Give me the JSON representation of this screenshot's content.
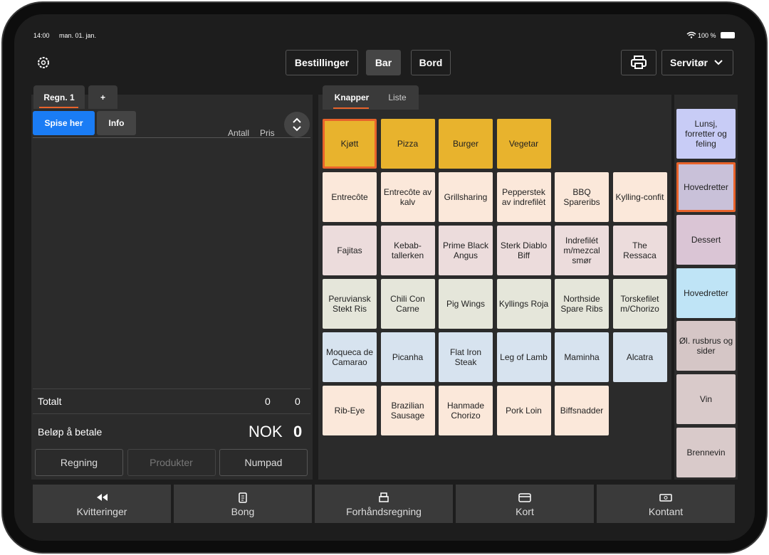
{
  "status": {
    "time": "14:00",
    "date": "man. 01. jan.",
    "battery": "100 %"
  },
  "nav": {
    "tabs": [
      "Bestillinger",
      "Bar",
      "Bord"
    ],
    "active_tab": 1,
    "user": "Servitør"
  },
  "bill": {
    "tabs": [
      "Regn. 1",
      "+"
    ],
    "modes": [
      "Spise her",
      "Info"
    ],
    "columns": [
      "Antall",
      "Pris"
    ],
    "total_label": "Totalt",
    "total_count": 0,
    "total_price": 0,
    "pay_label": "Beløp å betale",
    "currency": "NOK",
    "pay_amount": 0,
    "buttons": [
      "Regning",
      "Produkter",
      "Numpad"
    ],
    "disabled_button": 1
  },
  "products": {
    "tabs": [
      "Knapper",
      "Liste"
    ],
    "selected_cell": [
      0,
      0
    ],
    "rows": [
      {
        "color": "#e8b32d",
        "items": [
          "Kjøtt",
          "Pizza",
          "Burger",
          "Vegetar"
        ]
      },
      {
        "color": "#fbe8da",
        "items": [
          "Entrecôte",
          "Entrecôte av kalv",
          "Grillsharing",
          "Pepperstek av indrefilèt",
          "BBQ Spareribs",
          "Kylling-confit"
        ]
      },
      {
        "color": "#ecdcdc",
        "items": [
          "Fajitas",
          "Kebab-tallerken",
          "Prime Black Angus",
          "Sterk Diablo Biff",
          "Indrefilét m/mezcal smør",
          "The Ressaca"
        ]
      },
      {
        "color": "#e5e6da",
        "items": [
          "Peruviansk Stekt Ris",
          "Chili Con Carne",
          "Pig Wings",
          "Kyllings Roja",
          "Northside Spare Ribs",
          "Torskefilet m/Chorizo"
        ]
      },
      {
        "color": "#d7e3ef",
        "items": [
          "Moqueca de Camarao",
          "Picanha",
          "Flat Iron Steak",
          "Leg of Lamb",
          "Maminha",
          "Alcatra"
        ]
      },
      {
        "color": "#fbe8da",
        "items": [
          "Rib-Eye",
          "Brazilian Sausage",
          "Hanmade Chorizo",
          "Pork Loin",
          "Biffsnadder"
        ]
      }
    ]
  },
  "categories": {
    "selected": 1,
    "items": [
      {
        "label": "Lunsj, forretter og feling",
        "color": "#c8ccf6"
      },
      {
        "label": "Hovedretter",
        "color": "#c9c1d9"
      },
      {
        "label": "Dessert",
        "color": "#dac5d5"
      },
      {
        "label": "Hovedretter",
        "color": "#bfe4f6"
      },
      {
        "label": "Øl. rusbrus og sider",
        "color": "#d5c6c6"
      },
      {
        "label": "Vin",
        "color": "#d9caca"
      },
      {
        "label": "Brennevin",
        "color": "#d9caca"
      }
    ]
  },
  "actions": [
    "Kvitteringer",
    "Bong",
    "Forhåndsregning",
    "Kort",
    "Kontant"
  ]
}
